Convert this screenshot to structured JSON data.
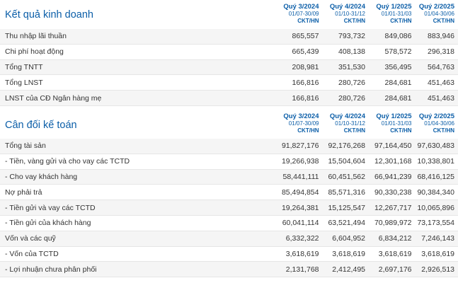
{
  "kqkd": {
    "title": "Kết quả kinh doanh",
    "periods": [
      {
        "quarter": "Quý 3/2024",
        "range": "01/07-30/09",
        "unit": "CKT/HN"
      },
      {
        "quarter": "Quý 4/2024",
        "range": "01/10-31/12",
        "unit": "CKT/HN"
      },
      {
        "quarter": "Quý 1/2025",
        "range": "01/01-31/03",
        "unit": "CKT/HN"
      },
      {
        "quarter": "Quý 2/2025",
        "range": "01/04-30/06",
        "unit": "CKT/HN"
      }
    ],
    "rows": [
      {
        "label": "Thu nhập lãi thuần",
        "values": [
          "865,557",
          "793,732",
          "849,086",
          "883,946"
        ]
      },
      {
        "label": "Chi phí hoạt động",
        "values": [
          "665,439",
          "408,138",
          "578,572",
          "296,318"
        ]
      },
      {
        "label": "Tổng TNTT",
        "values": [
          "208,981",
          "351,530",
          "356,495",
          "564,763"
        ]
      },
      {
        "label": "Tổng LNST",
        "values": [
          "166,816",
          "280,726",
          "284,681",
          "451,463"
        ]
      },
      {
        "label": "LNST của CĐ Ngân hàng mẹ",
        "values": [
          "166,816",
          "280,726",
          "284,681",
          "451,463"
        ]
      }
    ]
  },
  "cdkt": {
    "title": "Cân đối kế toán",
    "periods": [
      {
        "quarter": "Quý 3/2024",
        "range": "01/07-30/09",
        "unit": "CKT/HN"
      },
      {
        "quarter": "Quý 4/2024",
        "range": "01/10-31/12",
        "unit": "CKT/HN"
      },
      {
        "quarter": "Quý 1/2025",
        "range": "01/01-31/03",
        "unit": "CKT/HN"
      },
      {
        "quarter": "Quý 2/2025",
        "range": "01/04-30/06",
        "unit": "CKT/HN"
      }
    ],
    "rows": [
      {
        "label": "Tổng tài sản",
        "values": [
          "91,827,176",
          "92,176,268",
          "97,164,450",
          "97,630,483"
        ]
      },
      {
        "label": "- Tiền, vàng gửi và cho vay các TCTD",
        "values": [
          "19,266,938",
          "15,504,604",
          "12,301,168",
          "10,338,801"
        ]
      },
      {
        "label": "- Cho vay khách hàng",
        "values": [
          "58,441,111",
          "60,451,562",
          "66,941,239",
          "68,416,125"
        ]
      },
      {
        "label": "Nợ phải trả",
        "values": [
          "85,494,854",
          "85,571,316",
          "90,330,238",
          "90,384,340"
        ]
      },
      {
        "label": "- Tiền gửi và vay các TCTD",
        "values": [
          "19,264,381",
          "15,125,547",
          "12,267,717",
          "10,065,896"
        ]
      },
      {
        "label": "- Tiền gửi của khách hàng",
        "values": [
          "60,041,114",
          "63,521,494",
          "70,989,972",
          "73,173,554"
        ]
      },
      {
        "label": "Vốn và các quỹ",
        "values": [
          "6,332,322",
          "6,604,952",
          "6,834,212",
          "7,246,143"
        ]
      },
      {
        "label": "- Vốn của TCTD",
        "values": [
          "3,618,619",
          "3,618,619",
          "3,618,619",
          "3,618,619"
        ]
      },
      {
        "label": "- Lợi nhuận chưa phân phối",
        "values": [
          "2,131,768",
          "2,412,495",
          "2,697,176",
          "2,926,513"
        ]
      }
    ]
  }
}
